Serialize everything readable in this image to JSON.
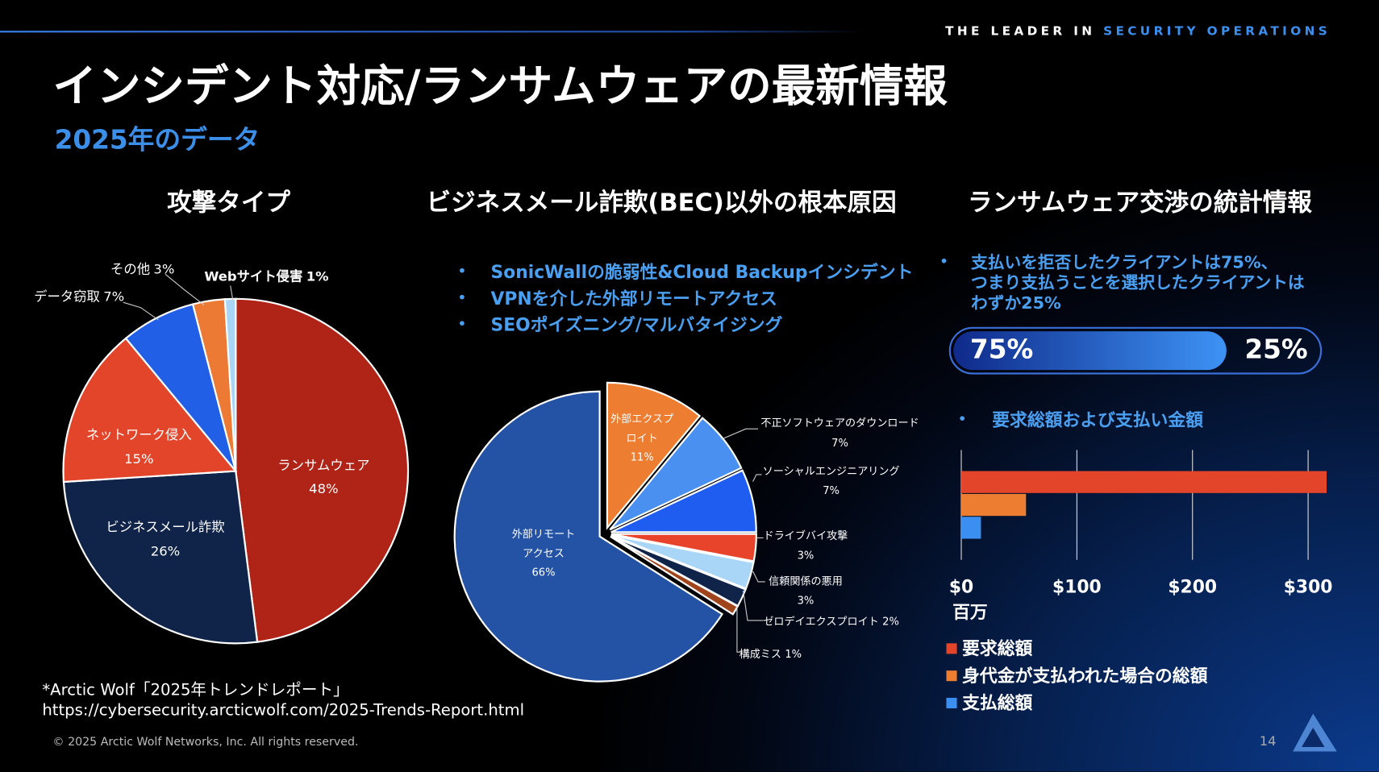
{
  "header": {
    "tagline_1": "THE LEADER IN",
    "tagline_2": "SECURITY OPERATIONS",
    "title": "インシデント対応/ランサムウェアの最新情報",
    "subtitle": "2025年のデータ"
  },
  "chart_data": [
    {
      "type": "pie",
      "title": "攻撃タイプ",
      "categories": [
        "ランサムウェア",
        "ビジネスメール詐欺",
        "ネットワーク侵入",
        "データ窃取",
        "その他",
        "Webサイト侵害"
      ],
      "values": [
        48,
        26,
        15,
        7,
        3,
        1
      ],
      "value_labels": [
        "48%",
        "26%",
        "15%",
        "7%",
        "3%",
        "1%"
      ],
      "colors": [
        "#b02418",
        "#0f2448",
        "#e2452a",
        "#2160e6",
        "#ec7a34",
        "#a8d4f5"
      ]
    },
    {
      "type": "pie",
      "title": "ビジネスメール詐欺(BEC)以外の根本原因",
      "bullets": [
        "SonicWallの脆弱性&Cloud Backupインシデント",
        "VPNを介した外部リモートアクセス",
        "SEOポイズニング/マルバタイジング"
      ],
      "categories": [
        "外部エクスプ\nロイト",
        "不正ソフトウェアのダウンロード",
        "ソーシャルエンジニアリング",
        "ドライブバイ攻撃",
        "信頼関係の悪用",
        "ゼロデイエクスプロイト",
        "構成ミス",
        "外部リモート\nアクセス"
      ],
      "values": [
        11,
        7,
        7,
        3,
        3,
        2,
        1,
        66
      ],
      "value_labels": [
        "11%",
        "7%",
        "7%",
        "3%",
        "3%",
        "2%",
        "1%",
        "66%"
      ],
      "colors": [
        "#ed7d31",
        "#4a90f0",
        "#1f5cf0",
        "#e8432b",
        "#a9d6f7",
        "#0f2448",
        "#a0441c",
        "#2453a6"
      ],
      "exploded": true
    },
    {
      "type": "progress",
      "title": "ランサムウェア交渉の統計情報",
      "note": "支払いを拒否したクライアントは75%、\nつまり支払うことを選択したクライアントは\nわずか25%",
      "values": [
        75,
        25
      ],
      "value_labels": [
        "75%",
        "25%"
      ]
    },
    {
      "type": "hbar",
      "subtitle": "要求総額および支払い金額",
      "series": [
        {
          "name": "要求総額",
          "color": "#e2452a",
          "values": [
            316
          ]
        },
        {
          "name": "身代金が支払われた場合の総額",
          "color": "#ed7d31",
          "values": [
            56
          ]
        },
        {
          "name": "支払総額",
          "color": "#3b8ff0",
          "values": [
            17
          ]
        }
      ],
      "xlim": [
        0,
        318
      ],
      "xticks": [
        {
          "value": 0,
          "label": "$0"
        },
        {
          "value": 100,
          "label": "$100"
        },
        {
          "value": 200,
          "label": "$200"
        },
        {
          "value": 300,
          "label": "$300"
        }
      ],
      "xlabel": "百万",
      "grid": true,
      "legend": "bottom-left"
    }
  ],
  "footnote": [
    "*Arctic Wolf「2025年トレンドレポート」",
    "https://cybersecurity.arcticwolf.com/2025-Trends-Report.html"
  ],
  "copyright": "© 2025 Arctic Wolf Networks, Inc. All rights reserved.",
  "page_number": "14"
}
